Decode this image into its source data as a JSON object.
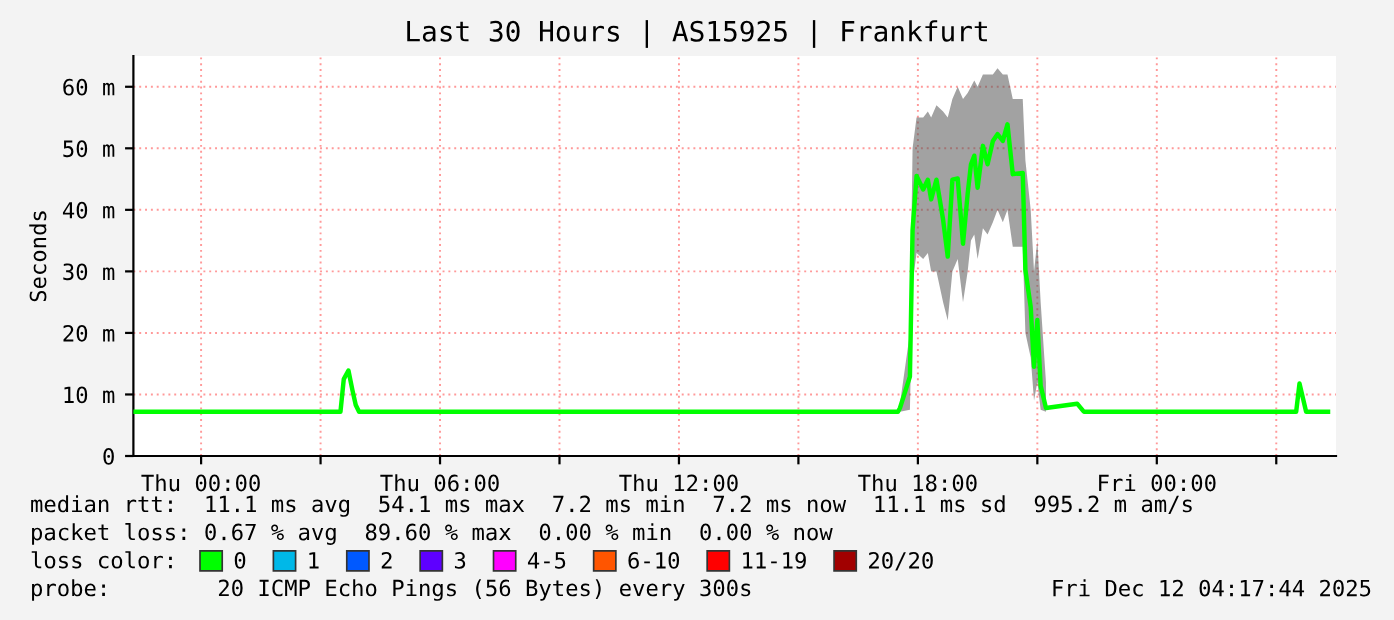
{
  "chart_data": {
    "type": "line",
    "title": "Last 30 Hours | AS15925 | Frankfurt",
    "ylabel": "Seconds",
    "x": [
      "2025-12-10T22:18",
      "2025-12-11T03:30",
      "2025-12-11T03:35",
      "2025-12-11T03:42",
      "2025-12-11T03:48",
      "2025-12-11T03:53",
      "2025-12-11T03:58",
      "2025-12-11T11:40",
      "2025-12-11T17:30",
      "2025-12-11T17:33",
      "2025-12-11T17:48",
      "2025-12-11T17:52",
      "2025-12-11T17:58",
      "2025-12-11T18:08",
      "2025-12-11T18:15",
      "2025-12-11T18:20",
      "2025-12-11T18:28",
      "2025-12-11T18:38",
      "2025-12-11T18:45",
      "2025-12-11T18:52",
      "2025-12-11T19:00",
      "2025-12-11T19:08",
      "2025-12-11T19:15",
      "2025-12-11T19:20",
      "2025-12-11T19:25",
      "2025-12-11T19:30",
      "2025-12-11T19:38",
      "2025-12-11T19:45",
      "2025-12-11T19:53",
      "2025-12-11T20:00",
      "2025-12-11T20:08",
      "2025-12-11T20:15",
      "2025-12-11T20:23",
      "2025-12-11T20:38",
      "2025-12-11T20:42",
      "2025-12-11T20:50",
      "2025-12-11T20:55",
      "2025-12-11T21:00",
      "2025-12-11T21:05",
      "2025-12-11T21:13",
      "2025-12-11T22:00",
      "2025-12-11T22:10",
      "2025-12-12T03:30",
      "2025-12-12T03:35",
      "2025-12-12T03:45",
      "2025-12-12T04:18"
    ],
    "series": [
      {
        "name": "0",
        "color": "#00ff00",
        "values": [
          7.2,
          7.2,
          12.5,
          13.9,
          10.7,
          8.3,
          7.2,
          7.2,
          7.2,
          7.8,
          12.9,
          36.7,
          45.5,
          43.3,
          44.9,
          41.7,
          44.9,
          38.4,
          32.4,
          44.9,
          45.1,
          34.5,
          42.6,
          47.4,
          48.8,
          43.6,
          50.4,
          47.4,
          51.2,
          52.3,
          51.2,
          53.9,
          45.8,
          46.0,
          30.2,
          24.2,
          14.5,
          22.1,
          11.4,
          7.8,
          8.5,
          7.2,
          7.2,
          11.8,
          7.2,
          7.2
        ],
        "lower": [
          null,
          null,
          null,
          null,
          null,
          null,
          null,
          null,
          null,
          7.2,
          7.5,
          28,
          33,
          32,
          33,
          30,
          30,
          25,
          22,
          30,
          32,
          25,
          30,
          35,
          36,
          32,
          37,
          36,
          38,
          40,
          38,
          40,
          34,
          34,
          20,
          16,
          9,
          12,
          7.5,
          7.2,
          null,
          null,
          null,
          null,
          null,
          null
        ],
        "upper": [
          null,
          null,
          null,
          null,
          null,
          null,
          null,
          null,
          null,
          8.5,
          20,
          50,
          55,
          55,
          56,
          55,
          57,
          56,
          55,
          58,
          60,
          58,
          59,
          60,
          61,
          60,
          62,
          62,
          62,
          63,
          62,
          62,
          58,
          58,
          48,
          40,
          30,
          35,
          25,
          12,
          null,
          null,
          null,
          null,
          null,
          null
        ]
      },
      {
        "name": "1",
        "color": "#00b8e8",
        "values": [
          null,
          null,
          null,
          null,
          null,
          null,
          null,
          null,
          null,
          null,
          null,
          null,
          null,
          null,
          null,
          null,
          null,
          null,
          null,
          null,
          null,
          null,
          null,
          null,
          null,
          null,
          null,
          null,
          null,
          null,
          null,
          null,
          null,
          null,
          null,
          null,
          null,
          null,
          null,
          null,
          null,
          null,
          null,
          null,
          null,
          null
        ]
      },
      {
        "name": "2",
        "color": "#0059ff",
        "values": [
          null,
          null,
          null,
          null,
          null,
          null,
          null,
          null,
          null,
          null,
          null,
          null,
          null,
          null,
          null,
          null,
          null,
          null,
          null,
          null,
          null,
          null,
          null,
          null,
          null,
          null,
          null,
          null,
          null,
          null,
          null,
          null,
          null,
          null,
          null,
          null,
          null,
          null,
          null,
          null,
          null,
          null,
          null,
          null,
          null,
          null
        ]
      },
      {
        "name": "3",
        "color": "#5e00ff",
        "values": [
          null,
          null,
          null,
          null,
          null,
          null,
          null,
          null,
          null,
          null,
          null,
          null,
          null,
          null,
          null,
          null,
          null,
          null,
          null,
          null,
          null,
          null,
          null,
          null,
          null,
          null,
          null,
          null,
          null,
          null,
          null,
          null,
          null,
          null,
          null,
          null,
          null,
          null,
          null,
          null,
          null,
          null,
          null,
          null,
          null,
          null
        ]
      },
      {
        "name": "4-5",
        "color": "#ff00ff",
        "values": [
          null,
          null,
          null,
          null,
          null,
          null,
          null,
          null,
          null,
          null,
          null,
          null,
          null,
          null,
          null,
          null,
          null,
          null,
          null,
          null,
          null,
          null,
          null,
          null,
          null,
          null,
          null,
          null,
          null,
          null,
          null,
          null,
          null,
          null,
          null,
          null,
          null,
          null,
          null,
          null,
          null,
          null,
          null,
          null,
          null,
          null
        ]
      },
      {
        "name": "6-10",
        "color": "#ff5500",
        "values": [
          null,
          null,
          null,
          null,
          null,
          null,
          null,
          null,
          null,
          null,
          null,
          null,
          null,
          null,
          null,
          null,
          null,
          null,
          null,
          null,
          null,
          null,
          null,
          null,
          null,
          null,
          null,
          null,
          null,
          null,
          null,
          null,
          null,
          null,
          null,
          null,
          null,
          null,
          null,
          null,
          null,
          null,
          null,
          null,
          null,
          null
        ]
      },
      {
        "name": "11-19",
        "color": "#ff0000",
        "values": [
          null,
          null,
          null,
          null,
          null,
          null,
          null,
          null,
          null,
          null,
          null,
          null,
          null,
          null,
          null,
          null,
          null,
          null,
          null,
          null,
          null,
          null,
          null,
          null,
          null,
          null,
          null,
          null,
          null,
          null,
          null,
          null,
          null,
          null,
          null,
          null,
          null,
          null,
          null,
          null,
          null,
          null,
          null,
          null,
          null,
          null
        ]
      },
      {
        "name": "20/20",
        "color": "#a10000",
        "values": [
          null,
          null,
          null,
          null,
          null,
          null,
          null,
          null,
          null,
          null,
          null,
          null,
          null,
          null,
          null,
          null,
          null,
          null,
          null,
          null,
          null,
          null,
          null,
          null,
          null,
          null,
          null,
          null,
          null,
          null,
          null,
          null,
          null,
          null,
          null,
          null,
          null,
          null,
          null,
          null,
          null,
          null,
          null,
          null,
          null,
          null
        ]
      }
    ],
    "legend": "bottom",
    "legend_title": "loss color:",
    "xlim": [
      "2025-12-10T22:18",
      "2025-12-12T04:30"
    ],
    "xticks": [
      {
        "value": "2025-12-11T00:00",
        "label": "Thu 00:00"
      },
      {
        "value": "2025-12-11T03:00",
        "label": null
      },
      {
        "value": "2025-12-11T06:00",
        "label": "Thu 06:00"
      },
      {
        "value": "2025-12-11T09:00",
        "label": null
      },
      {
        "value": "2025-12-11T12:00",
        "label": "Thu 12:00"
      },
      {
        "value": "2025-12-11T15:00",
        "label": null
      },
      {
        "value": "2025-12-11T18:00",
        "label": "Thu 18:00"
      },
      {
        "value": "2025-12-11T21:00",
        "label": null
      },
      {
        "value": "2025-12-12T00:00",
        "label": "Fri 00:00"
      },
      {
        "value": "2025-12-12T03:00",
        "label": null
      }
    ],
    "ylim": [
      0,
      65
    ],
    "yticks": [
      0,
      {
        "value": 10,
        "label": "10 m"
      },
      {
        "value": 20,
        "label": "20 m"
      },
      {
        "value": 30,
        "label": "30 m"
      },
      {
        "value": 40,
        "label": "40 m"
      },
      {
        "value": 50,
        "label": "50 m"
      },
      {
        "value": 60,
        "label": "60 m"
      }
    ],
    "grid": true,
    "line_style": "solid",
    "annotations": [
      "median rtt:  11.1 ms avg  54.1 ms max  7.2 ms min  7.2 ms now  11.1 ms sd  995.2 m am/s",
      "packet loss: 0.67 % avg  89.60 % max  0.00 % min  0.00 % now",
      "probe:        20 ICMP Echo Pings (56 Bytes) every 300s",
      "Fri Dec 12 04:17:44 2025"
    ]
  }
}
